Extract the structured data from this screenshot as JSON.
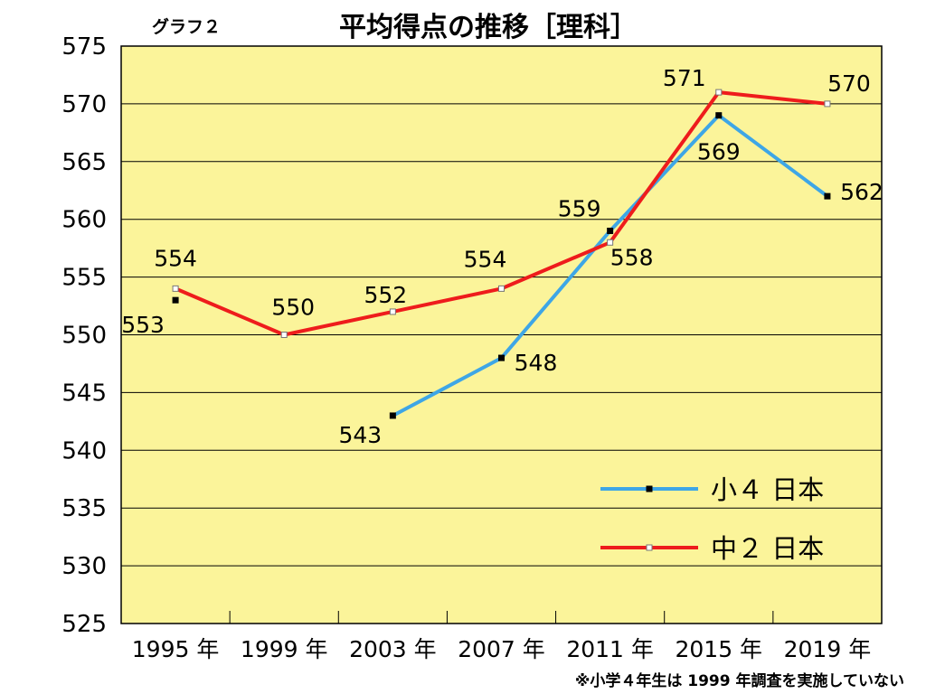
{
  "chart_data": {
    "type": "line",
    "tag": "グラフ２",
    "title": "平均得点の推移［理科］",
    "categories": [
      "1995 年",
      "1999 年",
      "2003 年",
      "2007 年",
      "2011 年",
      "2015 年",
      "2019 年"
    ],
    "yticks": [
      "575",
      "570",
      "565",
      "560",
      "555",
      "550",
      "545",
      "540",
      "535",
      "530",
      "525"
    ],
    "ylim": [
      525,
      575
    ],
    "grid": true,
    "legend_position": "bottom-right",
    "series": [
      {
        "name": "小４ 日本",
        "color": "#3ea6e6",
        "marker_color": "#000000",
        "values": [
          553,
          null,
          543,
          548,
          559,
          569,
          562
        ],
        "labels": [
          "553",
          "",
          "543",
          "548",
          "559",
          "569",
          "562"
        ]
      },
      {
        "name": "中２ 日本",
        "color": "#ee1c1c",
        "marker_color": "#ffffff",
        "values": [
          554,
          550,
          552,
          554,
          558,
          571,
          570
        ],
        "labels": [
          "554",
          "550",
          "552",
          "554",
          "558",
          "571",
          "570"
        ]
      }
    ],
    "footnote": "※小学４年生は 1999 年調査を実施していない",
    "colors": {
      "plot_background": "#fbf49a",
      "grid": "#000000"
    }
  }
}
